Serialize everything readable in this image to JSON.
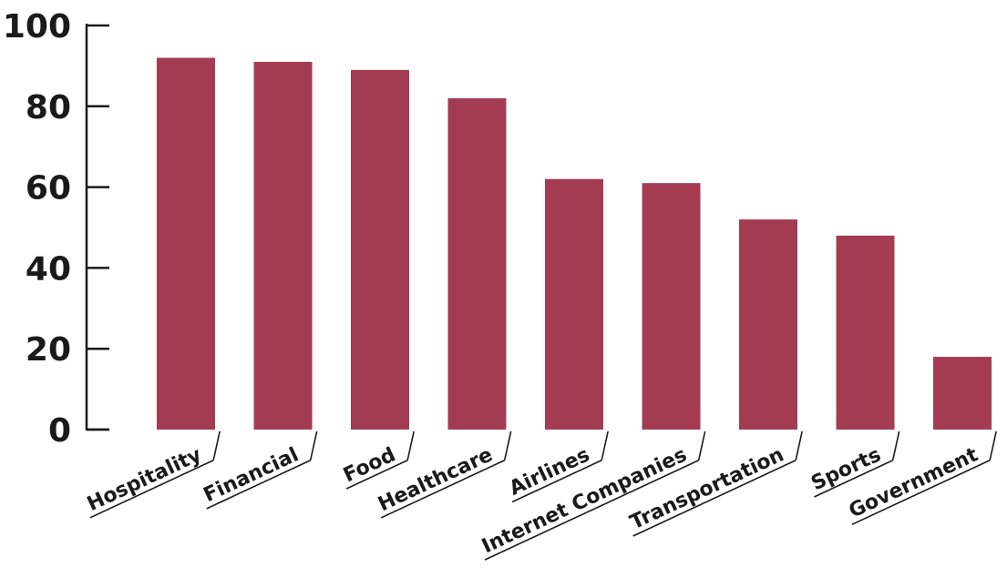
{
  "chart_data": {
    "type": "bar",
    "categories": [
      "Hospitality",
      "Financial",
      "Food",
      "Healthcare",
      "Airlines",
      "Internet Companies",
      "Transportation",
      "Sports",
      "Government"
    ],
    "values": [
      92,
      91,
      89,
      82,
      62,
      61,
      52,
      48,
      18
    ],
    "ylim": [
      0,
      100
    ],
    "yticks": [
      "0",
      "20",
      "40",
      "60",
      "80",
      "100"
    ],
    "grid": false,
    "legend": "none",
    "bar_color": "#a33c53",
    "title": "",
    "xlabel": "",
    "ylabel": ""
  }
}
